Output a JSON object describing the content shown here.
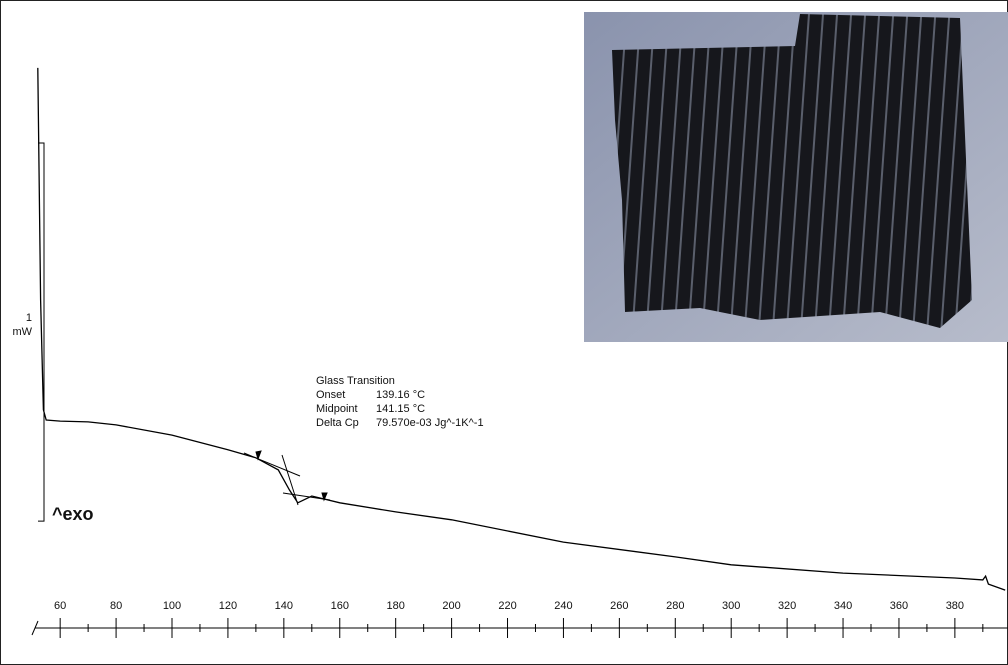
{
  "chart_data": {
    "type": "line",
    "x": [
      52,
      53,
      54,
      55,
      60,
      70,
      80,
      100,
      120,
      130,
      138,
      142,
      145,
      150,
      160,
      180,
      200,
      240,
      280,
      300,
      340,
      380,
      390,
      391,
      392,
      398
    ],
    "values": [
      1.46,
      0.847,
      0.556,
      0.529,
      0.526,
      0.524,
      0.516,
      0.489,
      0.45,
      0.429,
      0.397,
      0.344,
      0.31,
      0.328,
      0.31,
      0.286,
      0.265,
      0.206,
      0.167,
      0.146,
      0.124,
      0.111,
      0.106,
      0.116,
      0.095,
      0.079
    ],
    "color": "#000000",
    "xlim": [
      51,
      399
    ],
    "ylim": [
      0,
      1.6
    ],
    "xticks": [
      60,
      80,
      100,
      120,
      140,
      160,
      180,
      200,
      220,
      240,
      260,
      280,
      300,
      320,
      340,
      360,
      380
    ],
    "xminor_ticks": [
      70,
      90,
      110,
      130,
      150,
      170,
      190,
      210,
      230,
      250,
      270,
      290,
      310,
      330,
      350,
      370,
      390
    ],
    "scale_bar": {
      "value": 1,
      "unit": "mW"
    },
    "exo_label": "^exo",
    "annotation": {
      "title": "Glass Transition",
      "rows": [
        [
          "Onset",
          "139.16 °C"
        ],
        [
          "Midpoint",
          "141.15 °C"
        ],
        [
          "Delta Cp",
          "79.570e-03 Jg^-1K^-1"
        ]
      ]
    }
  }
}
